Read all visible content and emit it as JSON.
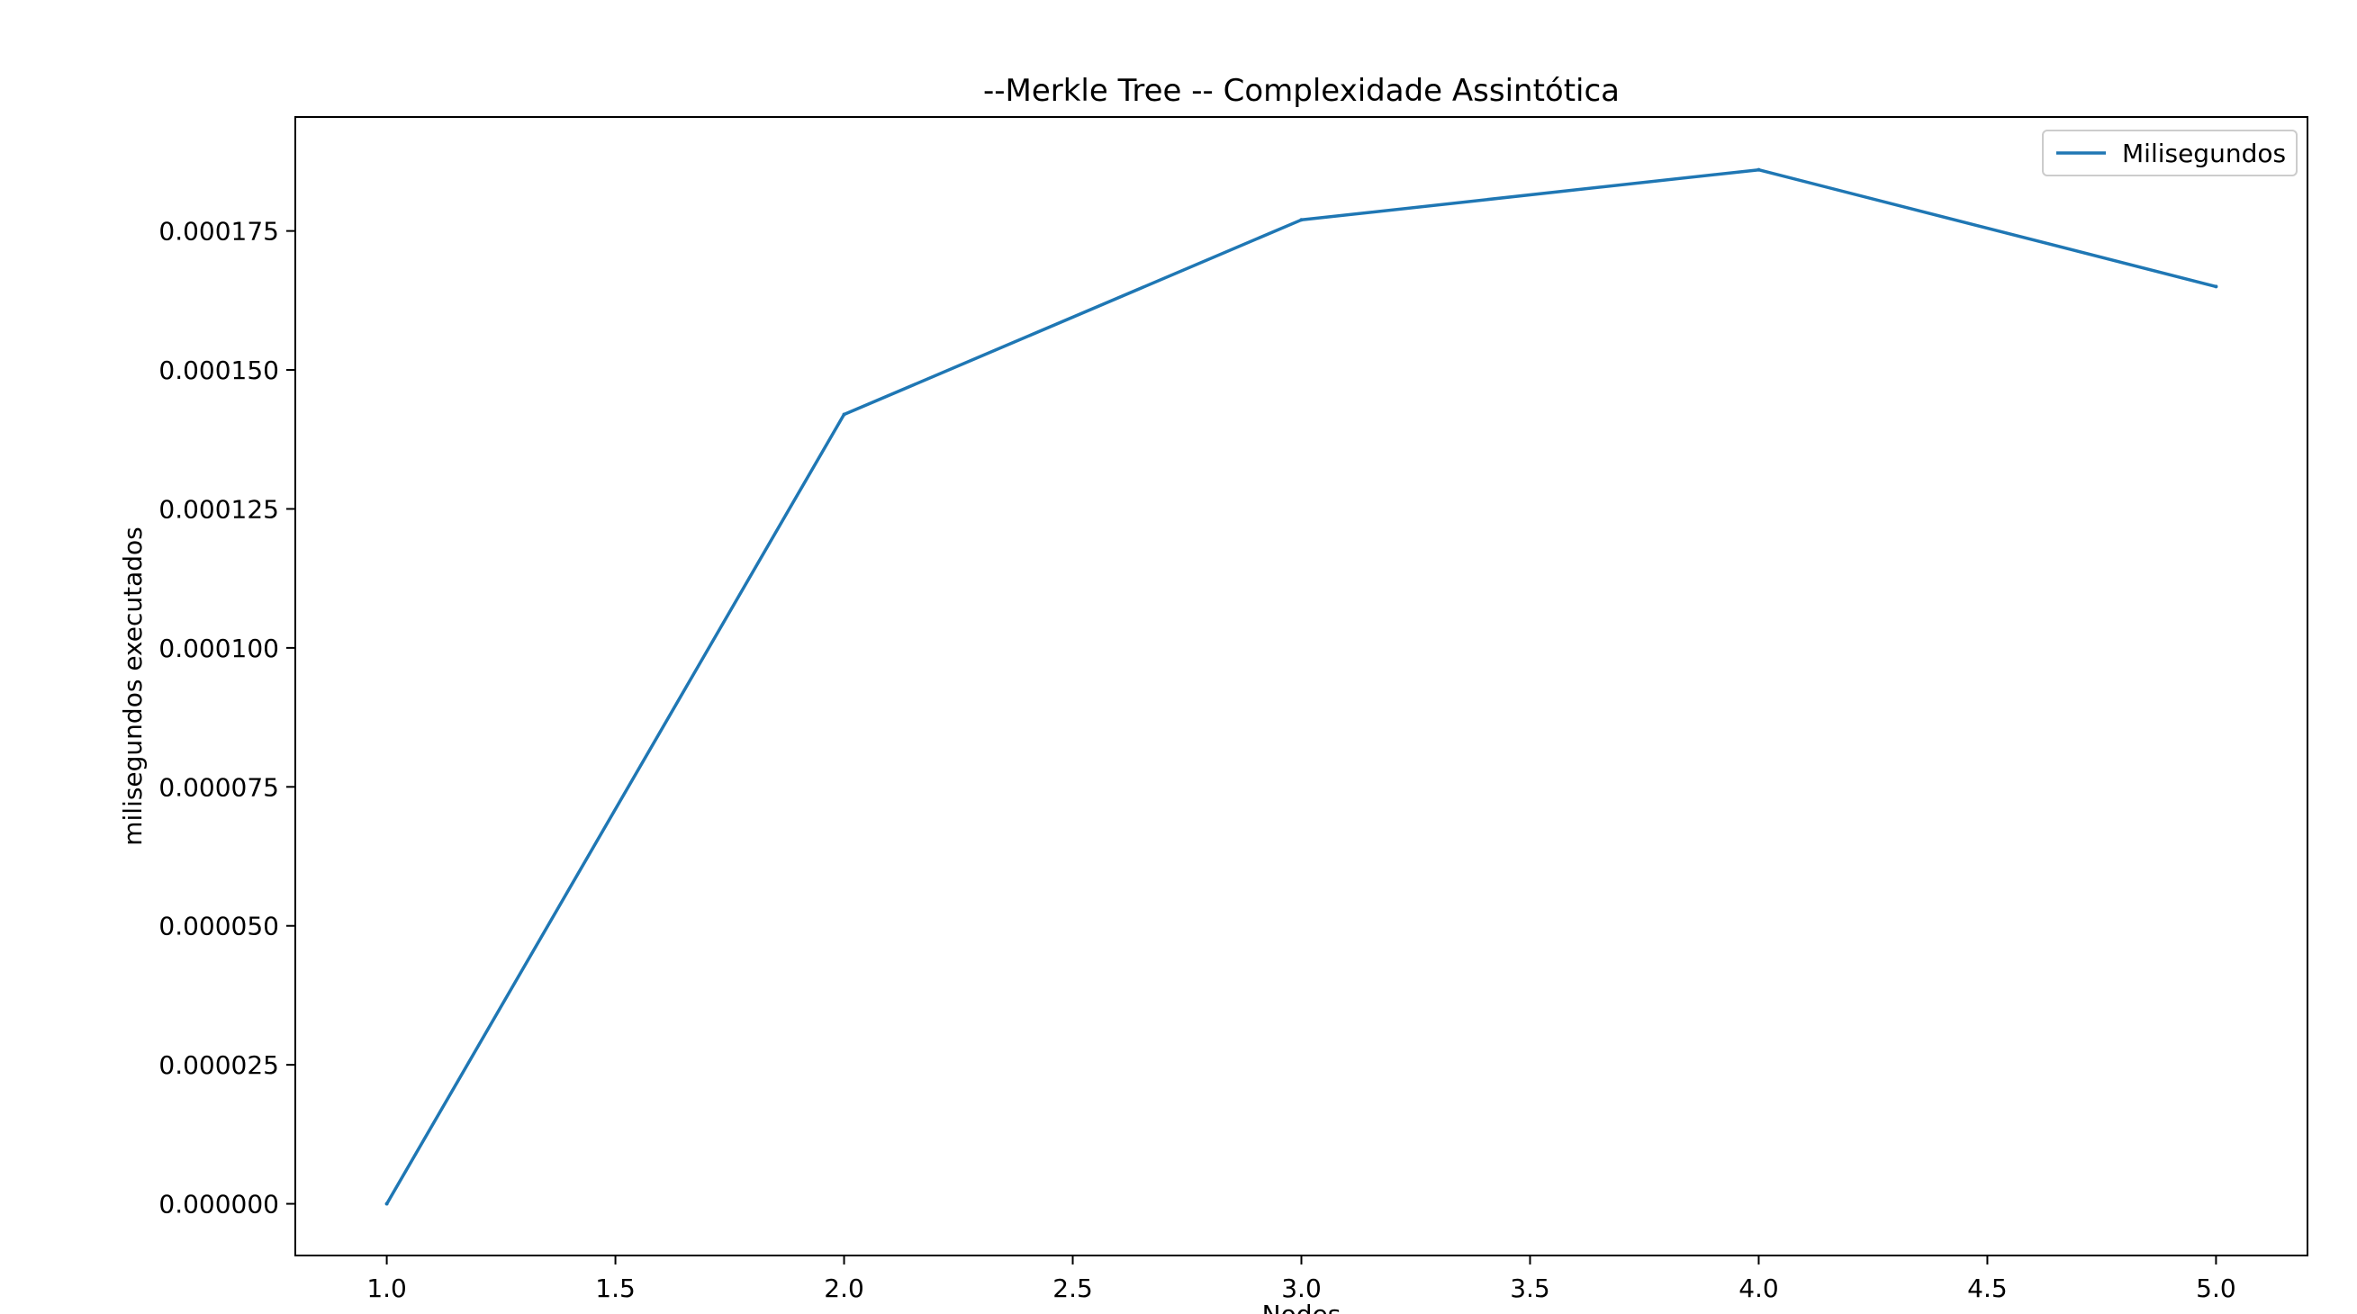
{
  "chart_data": {
    "type": "line",
    "title": "--Merkle Tree -- Complexidade Assintótica",
    "xlabel": "Nodes",
    "ylabel": "milisegundos executados",
    "x": [
      1.0,
      2.0,
      3.0,
      4.0,
      5.0
    ],
    "series": [
      {
        "name": "Milisegundos",
        "color": "#1f77b4",
        "values": [
          0.0,
          0.000142,
          0.000177,
          0.000186,
          0.000165
        ]
      }
    ],
    "xlim": [
      0.8,
      5.2
    ],
    "ylim": [
      -9.3e-06,
      0.0001955
    ],
    "xticks": [
      1.0,
      1.5,
      2.0,
      2.5,
      3.0,
      3.5,
      4.0,
      4.5,
      5.0
    ],
    "xtick_labels": [
      "1.0",
      "1.5",
      "2.0",
      "2.5",
      "3.0",
      "3.5",
      "4.0",
      "4.5",
      "5.0"
    ],
    "yticks": [
      0.0,
      2.5e-05,
      5e-05,
      7.5e-05,
      0.0001,
      0.000125,
      0.00015,
      0.000175
    ],
    "ytick_labels": [
      "0.000000",
      "0.000025",
      "0.000050",
      "0.000075",
      "0.000100",
      "0.000125",
      "0.000150",
      "0.000175"
    ],
    "grid": false,
    "legend_position": "upper right"
  }
}
